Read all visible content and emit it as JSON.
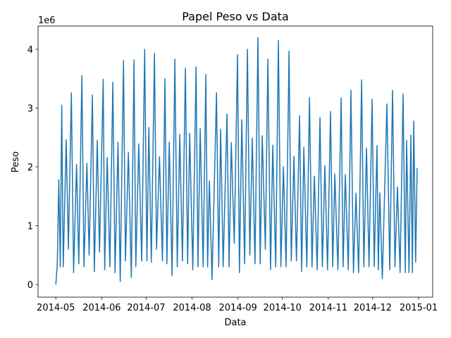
{
  "chart_data": {
    "type": "line",
    "title": "Papel Peso vs Data",
    "x_label": "Data",
    "y_label": "Peso",
    "y_offset_label": "1e6",
    "x": [
      0,
      1,
      2,
      3,
      4,
      5,
      7,
      8.5,
      10.5,
      12,
      14,
      15.5,
      17.6,
      19,
      21,
      22.5,
      24.7,
      26,
      28,
      29.5,
      32,
      33,
      34.7,
      36.5,
      38.5,
      40,
      42,
      43.5,
      45.7,
      47,
      49,
      51,
      52.8,
      54,
      56,
      58,
      60,
      61.5,
      62.8,
      64.5,
      66.6,
      68,
      70,
      72,
      73.7,
      75,
      76.6,
      78.5,
      80.4,
      82,
      83.7,
      85.5,
      87.5,
      89,
      90.4,
      92.5,
      94.7,
      96,
      97.5,
      99.5,
      101.3,
      102.5,
      103.7,
      105.5,
      108.5,
      110,
      111.3,
      113,
      115.6,
      117,
      118.5,
      120.5,
      122.7,
      124,
      125.6,
      127.5,
      129.4,
      131,
      132.7,
      134.5,
      136.5,
      138,
      139.4,
      141.5,
      143.2,
      145,
      146.5,
      148.5,
      150.3,
      152,
      153.7,
      155.5,
      157.5,
      159,
      160.8,
      162.5,
      164.6,
      166,
      167.5,
      169.5,
      171.3,
      173,
      174.6,
      176.5,
      178.4,
      180,
      181.7,
      183.5,
      185.5,
      187,
      188.4,
      190.5,
      192.7,
      194,
      195.5,
      197.5,
      199.3,
      201,
      202.7,
      204.5,
      206.5,
      208,
      209.8,
      211.5,
      213.6,
      215,
      216.9,
      217.8,
      218.8,
      220.5,
      223.6,
      225.5,
      227.4,
      229,
      230.7,
      232.5,
      234.5,
      236,
      236.9,
      238.5,
      239.8,
      240.8,
      241.7,
      243,
      244
    ],
    "series": [
      {
        "name": "Peso",
        "color": "#1f77b4",
        "values": [
          0.0,
          0.35,
          1.78,
          0.3,
          3.05,
          0.3,
          2.46,
          0.6,
          3.26,
          0.2,
          2.04,
          0.35,
          3.55,
          0.3,
          2.06,
          0.5,
          3.22,
          0.22,
          2.45,
          0.55,
          3.49,
          0.25,
          2.16,
          0.3,
          3.44,
          0.2,
          2.42,
          0.05,
          3.81,
          0.4,
          2.25,
          0.12,
          3.82,
          0.3,
          2.39,
          0.4,
          4.0,
          0.4,
          2.67,
          0.38,
          3.93,
          0.6,
          2.17,
          0.4,
          3.5,
          0.35,
          2.42,
          0.15,
          3.83,
          0.3,
          2.55,
          0.4,
          3.68,
          0.35,
          2.57,
          0.25,
          3.7,
          0.3,
          2.65,
          0.3,
          3.57,
          0.3,
          1.76,
          0.08,
          3.26,
          0.3,
          2.64,
          0.3,
          2.9,
          0.3,
          2.41,
          0.7,
          3.91,
          0.2,
          2.8,
          0.35,
          4.0,
          0.5,
          2.49,
          0.35,
          4.2,
          0.35,
          2.53,
          0.6,
          3.83,
          0.25,
          2.37,
          0.3,
          4.15,
          0.3,
          2.0,
          0.3,
          3.97,
          0.4,
          2.18,
          0.4,
          2.87,
          0.22,
          2.33,
          0.3,
          3.18,
          0.3,
          1.84,
          0.25,
          2.84,
          0.3,
          2.02,
          0.25,
          2.94,
          0.3,
          1.88,
          0.25,
          3.17,
          0.3,
          1.87,
          0.25,
          3.3,
          0.2,
          1.55,
          0.2,
          3.48,
          0.3,
          2.32,
          0.3,
          3.15,
          0.3,
          2.36,
          0.25,
          1.56,
          0.1,
          3.07,
          0.25,
          3.3,
          0.3,
          1.66,
          0.2,
          3.24,
          0.2,
          2.45,
          0.2,
          2.54,
          0.2,
          2.78,
          0.38,
          1.98
        ]
      }
    ],
    "xlim": [
      -12,
      254.5
    ],
    "xticks": [
      {
        "value": 0,
        "label": "2014-05"
      },
      {
        "value": 31,
        "label": "2014-06"
      },
      {
        "value": 61,
        "label": "2014-07"
      },
      {
        "value": 92,
        "label": "2014-08"
      },
      {
        "value": 123,
        "label": "2014-09"
      },
      {
        "value": 153,
        "label": "2014-10"
      },
      {
        "value": 184,
        "label": "2014-11"
      },
      {
        "value": 214,
        "label": "2014-12"
      },
      {
        "value": 245,
        "label": "2015-01"
      }
    ],
    "ylim": [
      -0.216,
      4.395
    ],
    "yticks": [
      0,
      1,
      2,
      3,
      4
    ]
  }
}
